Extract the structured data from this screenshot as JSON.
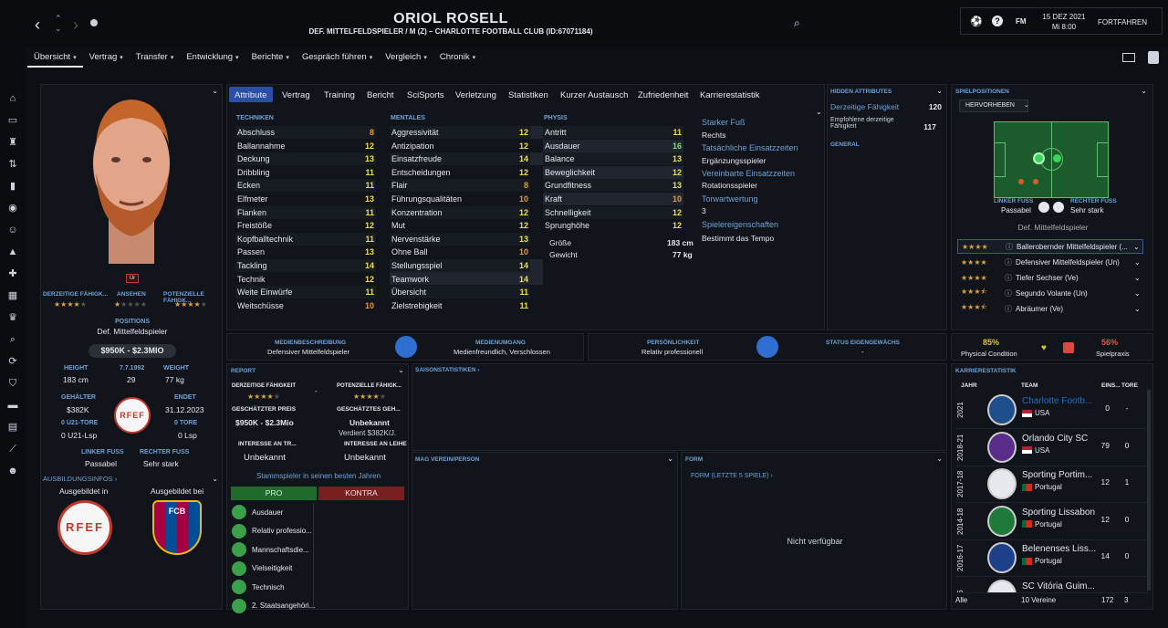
{
  "header": {
    "title": "ORIOL ROSELL",
    "subtitle": "DEF. MITTELFELDSPIELER / M (Z) – CHARLOTTE FOOTBALL CLUB (ID:67071184)",
    "date": "15 DEZ 2021",
    "weekday": "Mi 8:00",
    "continue_label": "FORTFAHREN",
    "fm_label": "FM"
  },
  "subnav": [
    {
      "label": "Übersicht"
    },
    {
      "label": "Vertrag"
    },
    {
      "label": "Transfer"
    },
    {
      "label": "Entwicklung"
    },
    {
      "label": "Berichte"
    },
    {
      "label": "Gespräch führen"
    },
    {
      "label": "Vergleich"
    },
    {
      "label": "Chronik"
    }
  ],
  "profile": {
    "u_badge": "Ur",
    "cur_ability_label": "DERZEITIGE FÄHIGK...",
    "reputation_label": "ANSEHEN",
    "pot_ability_label": "POTENZIELLE FÄHIGK...",
    "positions_label": "POSITIONS",
    "position": "Def. Mittelfeldspieler",
    "value": "$950K - $2.3MIO",
    "height_label": "HEIGHT",
    "height": "183 cm",
    "birth_label": "7.7.1992",
    "age": "29",
    "weight_label": "WEIGHT",
    "weight": "77 kg",
    "salary_label": "GEHÄLTER",
    "salary": "$382K",
    "ends_label": "ENDET",
    "ends": "31.12.2023",
    "u21_goals": "0 U21-TORE",
    "u21_apps": "0 U21-Lsp",
    "goals": "0 TORE",
    "apps": "0 Lsp",
    "left_foot_label": "LINKER FUSS",
    "left_foot": "Passabel",
    "right_foot_label": "RECHTER FUSS",
    "right_foot": "Sehr stark",
    "training_label": "AUSBILDUNGSINFOS ›",
    "trained_in": "Ausgebildet in",
    "trained_at": "Ausgebildet bei",
    "rfef": "RFEF",
    "fcb": "FCB"
  },
  "tabs": [
    "Attribute",
    "Vertrag",
    "Training",
    "Bericht",
    "SciSports",
    "Verletzung",
    "Statistiken",
    "Kurzer Austausch",
    "Zufriedenheit",
    "Karrierestatistik"
  ],
  "technik_label": "TECHNIKEN",
  "mental_label": "MENTALES",
  "physis_label": "PHYSIS",
  "technik": [
    {
      "n": "Abschluss",
      "v": "8"
    },
    {
      "n": "Ballannahme",
      "v": "12"
    },
    {
      "n": "Deckung",
      "v": "13"
    },
    {
      "n": "Dribbling",
      "v": "11"
    },
    {
      "n": "Ecken",
      "v": "11"
    },
    {
      "n": "Elfmeter",
      "v": "13"
    },
    {
      "n": "Flanken",
      "v": "11"
    },
    {
      "n": "Freistöße",
      "v": "12"
    },
    {
      "n": "Kopfballtechnik",
      "v": "11"
    },
    {
      "n": "Passen",
      "v": "13"
    },
    {
      "n": "Tackling",
      "v": "14"
    },
    {
      "n": "Technik",
      "v": "12"
    },
    {
      "n": "Weite Einwürfe",
      "v": "11"
    },
    {
      "n": "Weitschüsse",
      "v": "10"
    }
  ],
  "mental": [
    {
      "n": "Aggressivität",
      "v": "12"
    },
    {
      "n": "Antizipation",
      "v": "12"
    },
    {
      "n": "Einsatzfreude",
      "v": "14"
    },
    {
      "n": "Entscheidungen",
      "v": "12"
    },
    {
      "n": "Flair",
      "v": "8"
    },
    {
      "n": "Führungsqualitäten",
      "v": "10"
    },
    {
      "n": "Konzentration",
      "v": "12"
    },
    {
      "n": "Mut",
      "v": "12"
    },
    {
      "n": "Nervenstärke",
      "v": "13"
    },
    {
      "n": "Ohne Ball",
      "v": "10"
    },
    {
      "n": "Stellungsspiel",
      "v": "14"
    },
    {
      "n": "Teamwork",
      "v": "14"
    },
    {
      "n": "Übersicht",
      "v": "11"
    },
    {
      "n": "Zielstrebigkeit",
      "v": "11"
    }
  ],
  "physis": [
    {
      "n": "Antritt",
      "v": "11"
    },
    {
      "n": "Ausdauer",
      "v": "16"
    },
    {
      "n": "Balance",
      "v": "13"
    },
    {
      "n": "Beweglichkeit",
      "v": "12"
    },
    {
      "n": "Grundfitness",
      "v": "13"
    },
    {
      "n": "Kraft",
      "v": "10"
    },
    {
      "n": "Schnelligkeit",
      "v": "12"
    },
    {
      "n": "Sprunghöhe",
      "v": "12"
    }
  ],
  "size_label": "Größe",
  "size": "183 cm",
  "weight_label2": "Gewicht",
  "weight2": "77 kg",
  "side": {
    "strong_foot_label": "Starker Fuß",
    "strong_foot": "Rechts",
    "actual_label": "Tatsächliche Einsatzzeiten",
    "actual": "Ergänzungsspieler",
    "agreed_label": "Vereinbarte Einsatzzeiten",
    "agreed": "Rotationsspieler",
    "gk_label": "Torwartwertung",
    "gk": "3",
    "traits_label": "Spielereigenschaften",
    "traits": "Bestimmt das Tempo"
  },
  "hidden": {
    "title": "HIDDEN ATTRIBUTES",
    "cur_label": "Derzeitige Fähigkeit",
    "cur": "120",
    "rec_label": "Empfohlene derzeitige Fähigkeit",
    "rec": "117",
    "general": "GENERAL"
  },
  "positions": {
    "title": "SPIELPOSITIONEN",
    "highlight": "HERVORHEBEN",
    "left_foot_label": "LINKER FUSS",
    "left_foot": "Passabel",
    "right_foot_label": "RECHTER FUSS",
    "right_foot": "Sehr stark",
    "position": "Def. Mittelfeldspieler",
    "roles": [
      {
        "name": "Ballerobernder Mittelfeldspieler (...",
        "stars": 4
      },
      {
        "name": "Defensiver Mittelfeldspieler (Un)",
        "stars": 4
      },
      {
        "name": "Tiefer Sechser (Ve)",
        "stars": 4
      },
      {
        "name": "Segundo Volante (Un)",
        "stars": 3.5
      },
      {
        "name": "Abräumer (Ve)",
        "stars": 3.5
      }
    ]
  },
  "media": {
    "desc_label": "MEDIENBESCHREIBUNG",
    "desc": "Defensiver Mittelfeldspieler",
    "handling_label": "MEDIENUMGANG",
    "handling": "Medienfreundlich, Verschlossen",
    "personality_label": "PERSÖNLICHKEIT",
    "personality": "Relativ professionell",
    "status_label": "STATUS EIGENGEWÄCHS",
    "status": "-"
  },
  "condition": {
    "cond": "85%",
    "cond_label": "Physical Condition",
    "practice": "56%",
    "practice_label": "Spielpraxis"
  },
  "report": {
    "title": "REPORT",
    "cur_label": "DERZEITIGE FÄHIGKEIT",
    "pot_label": "POTENZIELLE FÄHIGK...",
    "price_label": "GESCHÄTZTER PREIS",
    "price": "$950K - $2.3Mio",
    "salary_label": "GESCHÄTZTES GEH...",
    "salary": "Unbekannt",
    "salary_note": "Verdient $382K/J.",
    "interest1_label": "INTERESSE AN TR...",
    "interest1": "Unbekannt",
    "interest2_label": "INTERESSE AN LEIHE",
    "interest2": "Unbekannt",
    "summary": "Stammspieler in seinen besten Jahren",
    "pro": "PRO",
    "contra": "KONTRA",
    "pros": [
      "Ausdauer",
      "Relativ professio...",
      "Mannschaftsdie...",
      "Vielseitigkeit",
      "Technisch",
      "2. Staatsangehöri..."
    ]
  },
  "season_stats": "SAISONSTATISTIKEN ›",
  "likes": "MAG VEREIN/PERSON",
  "form": {
    "title": "FORM",
    "sub": "FORM (LETZTE 5 SPIELE) ›",
    "na": "Nicht verfügbar"
  },
  "career": {
    "title": "KARRIERESTATISTIK",
    "h_year": "JAHR",
    "h_team": "TEAM",
    "h_apps": "EINS...",
    "h_goals": "TORE",
    "rows": [
      {
        "year": "2021",
        "team": "Charlotte Footb...",
        "country": "USA",
        "apps": "0",
        "goals": "-",
        "color": "#1e6fc4"
      },
      {
        "year": "2018-21",
        "team": "Orlando City SC",
        "country": "USA",
        "apps": "79",
        "goals": "0",
        "color": "#e6e8ee"
      },
      {
        "year": "2017-18",
        "team": "Sporting Portim...",
        "country": "Portugal",
        "apps": "12",
        "goals": "1",
        "color": "#e6e8ee"
      },
      {
        "year": "2014-18",
        "team": "Sporting Lissabon",
        "country": "Portugal",
        "apps": "12",
        "goals": "0",
        "color": "#e6e8ee"
      },
      {
        "year": "2016-17",
        "team": "Belenenses Liss...",
        "country": "Portugal",
        "apps": "14",
        "goals": "0",
        "color": "#e6e8ee"
      },
      {
        "year": "-16",
        "team": "SC Vitória Guim...",
        "country": "",
        "apps": "",
        "goals": "",
        "color": "#e6e8ee"
      }
    ],
    "f_all": "Alle",
    "f_clubs": "10 Vereine",
    "f_apps": "172",
    "f_goals": "3"
  }
}
